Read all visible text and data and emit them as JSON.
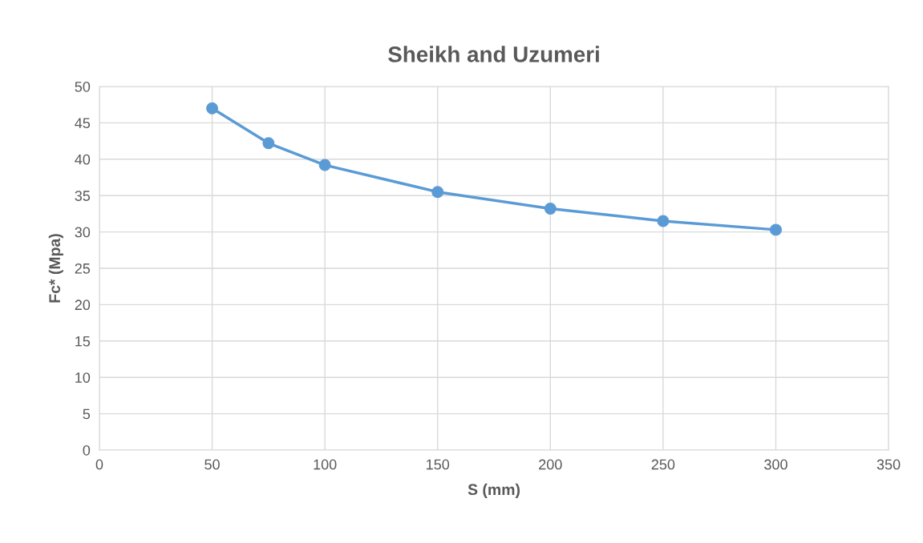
{
  "chart_data": {
    "type": "line",
    "title": "Sheikh and Uzumeri",
    "xlabel": "S (mm)",
    "ylabel": "Fc* (Mpa)",
    "x": [
      50,
      75,
      100,
      150,
      200,
      250,
      300
    ],
    "series": [
      {
        "color": "#5b9bd5",
        "values": [
          47,
          42.2,
          39.2,
          35.5,
          33.2,
          31.5,
          30.3
        ]
      }
    ],
    "xlim": [
      0,
      350
    ],
    "xticks": [
      0,
      50,
      100,
      150,
      200,
      250,
      300,
      350
    ],
    "ylim": [
      0,
      50
    ],
    "yticks": [
      0,
      5,
      10,
      15,
      20,
      25,
      30,
      35,
      40,
      45,
      50
    ],
    "grid": true,
    "marker": "circle",
    "line_style": "solid"
  }
}
